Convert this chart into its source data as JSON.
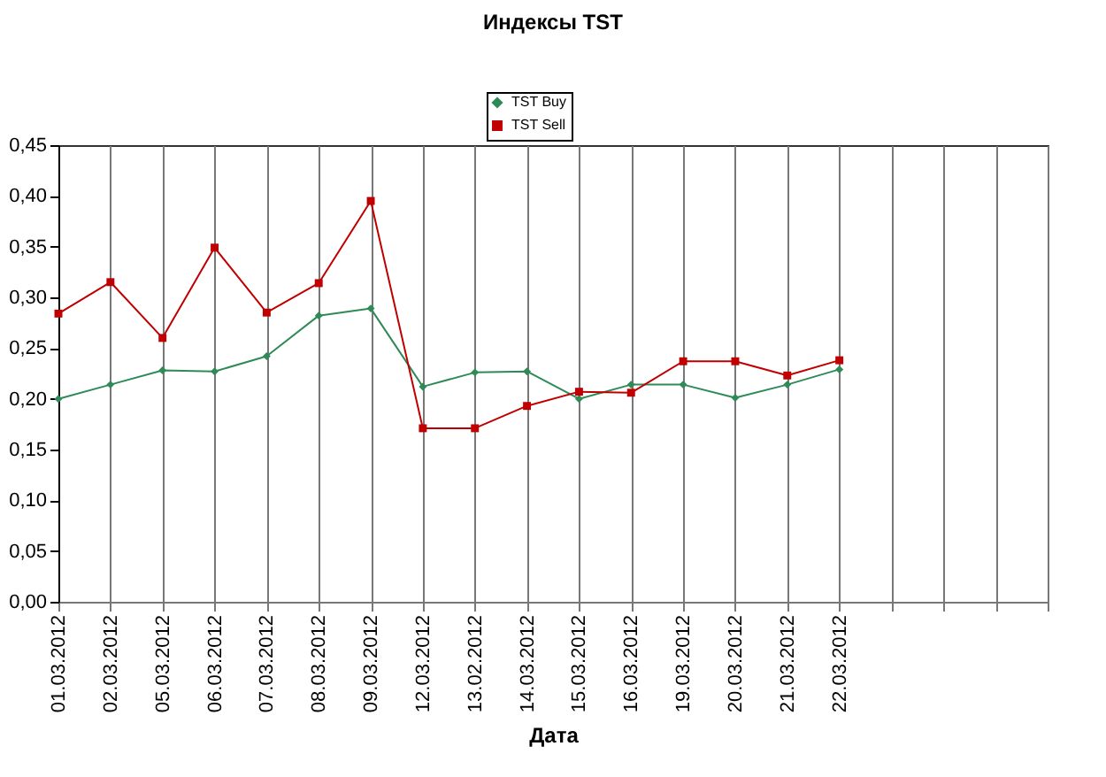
{
  "chart_data": {
    "type": "line",
    "title": "Индексы TST",
    "xlabel": "Дата",
    "categories": [
      "01.03.2012",
      "02.03.2012",
      "05.03.2012",
      "06.03.2012",
      "07.03.2012",
      "08.03.2012",
      "09.03.2012",
      "12.03.2012",
      "13.02.2012",
      "14.03.2012",
      "15.03.2012",
      "16.03.2012",
      "19.03.2012",
      "20.03.2012",
      "21.03.2012",
      "22.03.2012",
      null,
      null,
      null,
      null
    ],
    "series": [
      {
        "name": "TST Buy",
        "color": "#2e8b57",
        "marker": "diamond",
        "values": [
          0.2,
          0.214,
          0.228,
          0.227,
          0.242,
          0.282,
          0.289,
          0.212,
          0.226,
          0.227,
          0.2,
          0.214,
          0.214,
          0.201,
          0.214,
          0.229,
          null,
          null,
          null,
          null
        ]
      },
      {
        "name": "TST Sell",
        "color": "#c00000",
        "marker": "square",
        "values": [
          0.284,
          0.315,
          0.26,
          0.349,
          0.285,
          0.314,
          0.395,
          0.171,
          0.171,
          0.193,
          0.207,
          0.206,
          0.237,
          0.237,
          0.223,
          0.238,
          null,
          null,
          null,
          null
        ]
      }
    ],
    "ylim": [
      0,
      0.45
    ],
    "yticks": [
      {
        "value": 0,
        "label": "0,00"
      },
      {
        "value": 0.05,
        "label": "0,05"
      },
      {
        "value": 0.1,
        "label": "0,10"
      },
      {
        "value": 0.15,
        "label": "0,15"
      },
      {
        "value": 0.2,
        "label": "0,20"
      },
      {
        "value": 0.25,
        "label": "0,25"
      },
      {
        "value": 0.3,
        "label": "0,30"
      },
      {
        "value": 0.35,
        "label": "0,35"
      },
      {
        "value": 0.4,
        "label": "0,40"
      },
      {
        "value": 0.45,
        "label": "0,45"
      }
    ],
    "grid": "x",
    "legend": "top",
    "line_style": "solid"
  }
}
